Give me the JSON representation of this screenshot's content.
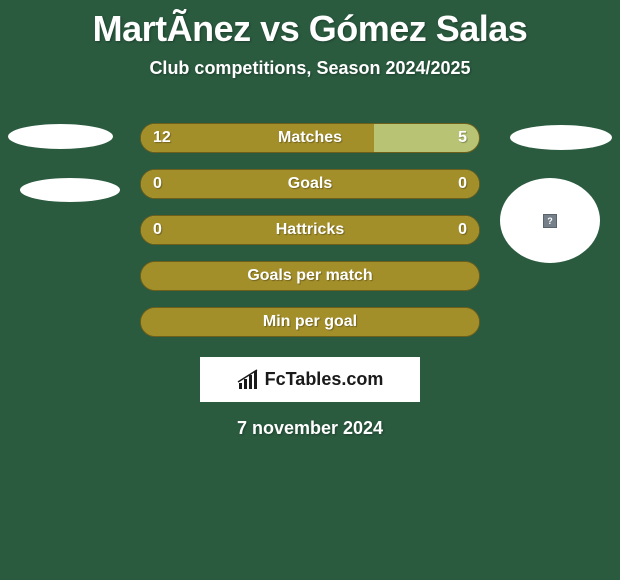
{
  "title": "MartÃnez vs Gómez Salas",
  "subtitle": "Club competitions, Season 2024/2025",
  "date": "7 november 2024",
  "logo_text": "FcTables.com",
  "colors": {
    "background": "#2a5b3f",
    "bar_dark": "#a38f2a",
    "bar_light": "#b8c474",
    "bar_border": "#6d5f1c",
    "white": "#ffffff"
  },
  "stats": [
    {
      "label": "Matches",
      "left_value": "12",
      "right_value": "5",
      "left_width": 0.69,
      "left_color": "#a38f2a",
      "right_color": "#b8c474"
    },
    {
      "label": "Goals",
      "left_value": "0",
      "right_value": "0",
      "left_width": 1.0,
      "left_color": "#a38f2a",
      "right_color": "#b8c474"
    },
    {
      "label": "Hattricks",
      "left_value": "0",
      "right_value": "0",
      "left_width": 1.0,
      "left_color": "#a38f2a",
      "right_color": "#b8c474"
    },
    {
      "label": "Goals per match",
      "left_value": "",
      "right_value": "",
      "left_width": 1.0,
      "left_color": "#a38f2a",
      "right_color": "#a38f2a"
    },
    {
      "label": "Min per goal",
      "left_value": "",
      "right_value": "",
      "left_width": 1.0,
      "left_color": "#a38f2a",
      "right_color": "#a38f2a"
    }
  ],
  "question_mark": "?"
}
